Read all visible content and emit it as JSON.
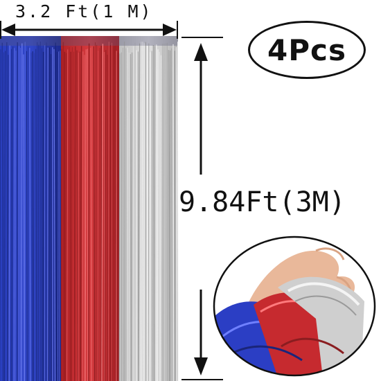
{
  "dimensions": {
    "width_label": "3.2 Ft(1 M)",
    "height_label": "9.84Ft(3M)"
  },
  "quantity_badge": "4Pcs",
  "colors": {
    "blue": "#1f2fa6",
    "red": "#c0262b",
    "silver": "#c9c9c9",
    "outline": "#111111"
  },
  "icons": {
    "width_arrow": "double-arrow-horizontal-icon",
    "height_arrow": "double-arrow-vertical-icon"
  }
}
